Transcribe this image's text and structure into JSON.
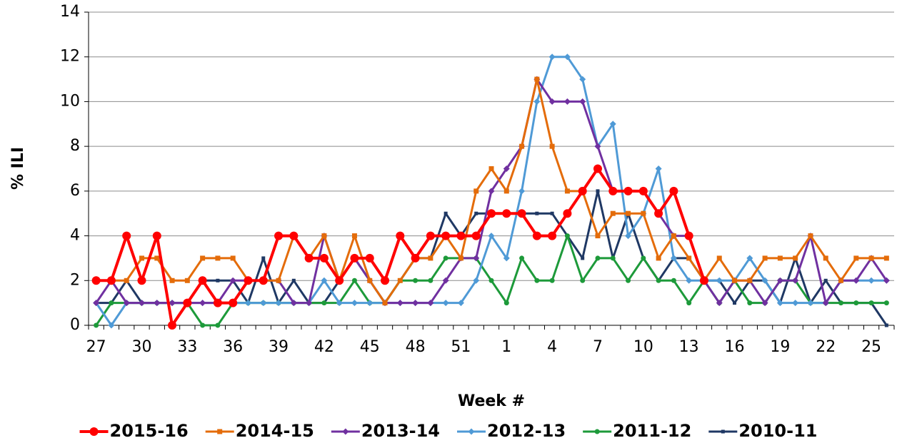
{
  "chart_data": {
    "type": "line",
    "x_label": "Week #",
    "y_label": "% ILI",
    "categories": [
      "27",
      null,
      null,
      "30",
      null,
      null,
      "33",
      null,
      null,
      "36",
      null,
      null,
      "39",
      null,
      null,
      "42",
      null,
      null,
      "45",
      null,
      null,
      "48",
      null,
      null,
      "51",
      null,
      null,
      "1",
      null,
      null,
      "4",
      null,
      null,
      "7",
      null,
      null,
      "10",
      null,
      null,
      "13",
      null,
      null,
      "16",
      null,
      null,
      "19",
      null,
      null,
      "22",
      null,
      null,
      "25",
      null
    ],
    "ylim": [
      0,
      14
    ],
    "yticks": [
      0,
      2,
      4,
      6,
      8,
      10,
      12,
      14
    ],
    "grid": true,
    "series": [
      {
        "name": "2015-16",
        "color": "#ff0000",
        "marker": "circle-big",
        "values": [
          2,
          2,
          4,
          2,
          4,
          0,
          1,
          2,
          1,
          1,
          2,
          2,
          4,
          4,
          3,
          3,
          2,
          3,
          3,
          2,
          4,
          3,
          4,
          4,
          4,
          4,
          5,
          5,
          5,
          4,
          4,
          5,
          6,
          7,
          6,
          6,
          6,
          5,
          6,
          4,
          2,
          null,
          null,
          null,
          null,
          null,
          null,
          null,
          null,
          null,
          null,
          null,
          null
        ]
      },
      {
        "name": "2014-15",
        "color": "#e46c0a",
        "marker": "square",
        "values": [
          2,
          2,
          2,
          3,
          3,
          2,
          2,
          3,
          3,
          3,
          2,
          2,
          2,
          4,
          3,
          4,
          2,
          4,
          2,
          1,
          2,
          3,
          3,
          4,
          3,
          6,
          7,
          6,
          8,
          11,
          8,
          6,
          6,
          4,
          5,
          5,
          5,
          3,
          4,
          3,
          2,
          3,
          2,
          2,
          3,
          3,
          3,
          4,
          3,
          2,
          3,
          3,
          3
        ]
      },
      {
        "name": "2013-14",
        "color": "#7030a0",
        "marker": "diamond",
        "values": [
          1,
          2,
          1,
          1,
          1,
          1,
          1,
          1,
          1,
          2,
          2,
          2,
          2,
          1,
          1,
          4,
          2,
          3,
          2,
          1,
          1,
          1,
          1,
          2,
          3,
          3,
          6,
          7,
          8,
          11,
          10,
          10,
          10,
          8,
          6,
          6,
          6,
          5,
          4,
          4,
          2,
          1,
          2,
          2,
          1,
          2,
          2,
          4,
          1,
          2,
          2,
          3,
          2
        ]
      },
      {
        "name": "2012-13",
        "color": "#4f9ad6",
        "marker": "diamond",
        "values": [
          1,
          0,
          1,
          1,
          1,
          1,
          1,
          1,
          1,
          1,
          1,
          1,
          1,
          1,
          1,
          2,
          1,
          1,
          1,
          1,
          1,
          1,
          1,
          1,
          1,
          2,
          4,
          3,
          6,
          10,
          12,
          12,
          11,
          8,
          9,
          4,
          5,
          7,
          3,
          2,
          2,
          2,
          2,
          3,
          2,
          1,
          1,
          1,
          1,
          2,
          2,
          2,
          2
        ]
      },
      {
        "name": "2011-12",
        "color": "#1d9a3a",
        "marker": "circle",
        "values": [
          0,
          1,
          1,
          1,
          1,
          1,
          1,
          0,
          0,
          1,
          1,
          1,
          1,
          1,
          1,
          1,
          1,
          2,
          1,
          1,
          2,
          2,
          2,
          3,
          3,
          3,
          2,
          1,
          3,
          2,
          2,
          4,
          2,
          3,
          3,
          2,
          3,
          2,
          2,
          1,
          2,
          1,
          2,
          1,
          1,
          2,
          2,
          1,
          1,
          1,
          1,
          1,
          1
        ]
      },
      {
        "name": "2010-11",
        "color": "#1f3864",
        "marker": "square-small",
        "values": [
          1,
          1,
          2,
          1,
          1,
          1,
          1,
          2,
          2,
          2,
          1,
          3,
          1,
          2,
          1,
          1,
          2,
          3,
          2,
          1,
          2,
          3,
          3,
          5,
          4,
          5,
          5,
          5,
          5,
          5,
          5,
          4,
          3,
          6,
          3,
          5,
          3,
          2,
          3,
          3,
          2,
          2,
          1,
          2,
          2,
          1,
          3,
          1,
          2,
          1,
          1,
          1,
          0
        ]
      }
    ]
  }
}
